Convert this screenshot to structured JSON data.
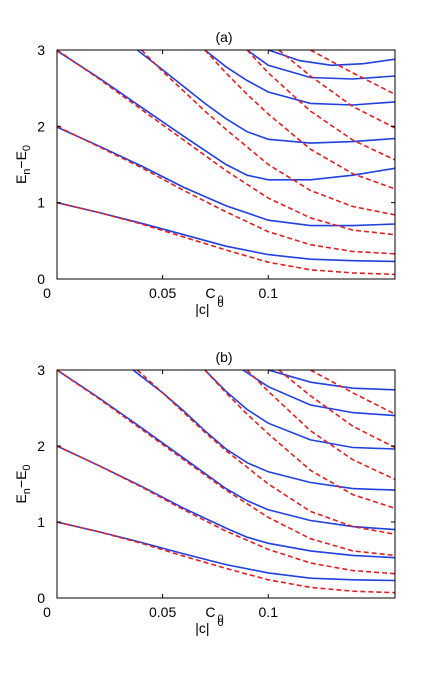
{
  "chart_data": [
    {
      "type": "line",
      "title": "(a)",
      "xlabel": "|c|",
      "ylabel_main": "E",
      "ylabel_sub_n": "n",
      "ylabel_minus": "−E",
      "ylabel_sub_0": "0",
      "x_ticks": [
        "0",
        "0.05",
        "0.1"
      ],
      "x_tick_values": [
        0,
        0.05,
        0.1
      ],
      "y_ticks": [
        "0",
        "1",
        "2",
        "3"
      ],
      "y_tick_values": [
        0,
        1,
        2,
        3
      ],
      "xlim": [
        0,
        0.16
      ],
      "ylim": [
        0,
        3
      ],
      "marker_label": "C",
      "marker_sub": "0",
      "marker_x": 0.075,
      "xlabel_sup": "0",
      "grid": false,
      "series": [
        {
          "style": "solid",
          "color": "#2040e0",
          "points": [
            [
              0,
              1
            ],
            [
              0.02,
              0.87
            ],
            [
              0.04,
              0.73
            ],
            [
              0.06,
              0.58
            ],
            [
              0.08,
              0.43
            ],
            [
              0.1,
              0.32
            ],
            [
              0.12,
              0.26
            ],
            [
              0.14,
              0.24
            ],
            [
              0.16,
              0.23
            ]
          ]
        },
        {
          "style": "solid",
          "color": "#2040e0",
          "points": [
            [
              0,
              1.99
            ],
            [
              0.02,
              1.74
            ],
            [
              0.04,
              1.48
            ],
            [
              0.06,
              1.2
            ],
            [
              0.08,
              0.96
            ],
            [
              0.1,
              0.77
            ],
            [
              0.12,
              0.7
            ],
            [
              0.14,
              0.7
            ],
            [
              0.16,
              0.72
            ]
          ]
        },
        {
          "style": "solid",
          "color": "#2040e0",
          "points": [
            [
              0,
              2.99
            ],
            [
              0.02,
              2.63
            ],
            [
              0.04,
              2.25
            ],
            [
              0.06,
              1.87
            ],
            [
              0.08,
              1.5
            ],
            [
              0.09,
              1.36
            ],
            [
              0.1,
              1.3
            ],
            [
              0.12,
              1.3
            ],
            [
              0.14,
              1.36
            ],
            [
              0.16,
              1.45
            ]
          ]
        },
        {
          "style": "solid",
          "color": "#2040e0",
          "points": [
            [
              0.038,
              3.0
            ],
            [
              0.05,
              2.74
            ],
            [
              0.06,
              2.52
            ],
            [
              0.07,
              2.3
            ],
            [
              0.08,
              2.1
            ],
            [
              0.09,
              1.93
            ],
            [
              0.1,
              1.83
            ],
            [
              0.12,
              1.78
            ],
            [
              0.14,
              1.8
            ],
            [
              0.16,
              1.84
            ]
          ]
        },
        {
          "style": "solid",
          "color": "#2040e0",
          "points": [
            [
              0.07,
              3.0
            ],
            [
              0.08,
              2.78
            ],
            [
              0.09,
              2.6
            ],
            [
              0.1,
              2.45
            ],
            [
              0.12,
              2.3
            ],
            [
              0.14,
              2.28
            ],
            [
              0.16,
              2.32
            ]
          ]
        },
        {
          "style": "solid",
          "color": "#2040e0",
          "points": [
            [
              0.09,
              3.0
            ],
            [
              0.1,
              2.8
            ],
            [
              0.12,
              2.64
            ],
            [
              0.14,
              2.62
            ],
            [
              0.16,
              2.66
            ]
          ]
        },
        {
          "style": "solid",
          "color": "#2040e0",
          "points": [
            [
              0.1,
              3.0
            ],
            [
              0.115,
              2.86
            ],
            [
              0.13,
              2.8
            ],
            [
              0.145,
              2.82
            ],
            [
              0.16,
              2.88
            ]
          ]
        },
        {
          "style": "dashed",
          "color": "#e02020",
          "points": [
            [
              0,
              1
            ],
            [
              0.02,
              0.87
            ],
            [
              0.04,
              0.72
            ],
            [
              0.06,
              0.55
            ],
            [
              0.08,
              0.38
            ],
            [
              0.1,
              0.22
            ],
            [
              0.12,
              0.12
            ],
            [
              0.14,
              0.08
            ],
            [
              0.16,
              0.06
            ]
          ]
        },
        {
          "style": "dashed",
          "color": "#e02020",
          "points": [
            [
              0,
              2.0
            ],
            [
              0.02,
              1.73
            ],
            [
              0.04,
              1.46
            ],
            [
              0.06,
              1.16
            ],
            [
              0.08,
              0.88
            ],
            [
              0.1,
              0.62
            ],
            [
              0.12,
              0.45
            ],
            [
              0.14,
              0.36
            ],
            [
              0.16,
              0.33
            ]
          ]
        },
        {
          "style": "dashed",
          "color": "#e02020",
          "points": [
            [
              0,
              3.0
            ],
            [
              0.02,
              2.62
            ],
            [
              0.04,
              2.22
            ],
            [
              0.06,
              1.82
            ],
            [
              0.08,
              1.42
            ],
            [
              0.1,
              1.06
            ],
            [
              0.12,
              0.8
            ],
            [
              0.14,
              0.64
            ],
            [
              0.16,
              0.58
            ]
          ]
        },
        {
          "style": "dashed",
          "color": "#e02020",
          "points": [
            [
              0.04,
              3.0
            ],
            [
              0.05,
              2.72
            ],
            [
              0.06,
              2.46
            ],
            [
              0.07,
              2.2
            ],
            [
              0.08,
              1.96
            ],
            [
              0.1,
              1.5
            ],
            [
              0.12,
              1.16
            ],
            [
              0.14,
              0.95
            ],
            [
              0.16,
              0.84
            ]
          ]
        },
        {
          "style": "dashed",
          "color": "#e02020",
          "points": [
            [
              0.07,
              3.0
            ],
            [
              0.08,
              2.7
            ],
            [
              0.09,
              2.42
            ],
            [
              0.1,
              2.16
            ],
            [
              0.12,
              1.7
            ],
            [
              0.14,
              1.38
            ],
            [
              0.16,
              1.18
            ]
          ]
        },
        {
          "style": "dashed",
          "color": "#e02020",
          "points": [
            [
              0.09,
              3.0
            ],
            [
              0.1,
              2.7
            ],
            [
              0.12,
              2.2
            ],
            [
              0.14,
              1.82
            ],
            [
              0.16,
              1.56
            ]
          ]
        },
        {
          "style": "dashed",
          "color": "#e02020",
          "points": [
            [
              0.105,
              3.0
            ],
            [
              0.12,
              2.66
            ],
            [
              0.14,
              2.26
            ],
            [
              0.16,
              1.98
            ]
          ]
        },
        {
          "style": "dashed",
          "color": "#e02020",
          "points": [
            [
              0.12,
              3.0
            ],
            [
              0.14,
              2.7
            ],
            [
              0.16,
              2.42
            ]
          ]
        }
      ]
    },
    {
      "type": "line",
      "title": "(b)",
      "xlabel": "|c|",
      "ylabel_main": "E",
      "ylabel_sub_n": "n",
      "ylabel_minus": "−E",
      "ylabel_sub_0": "0",
      "x_ticks": [
        "0",
        "0.05",
        "0.1"
      ],
      "x_tick_values": [
        0,
        0.05,
        0.1
      ],
      "y_ticks": [
        "0",
        "1",
        "2",
        "3"
      ],
      "y_tick_values": [
        0,
        1,
        2,
        3
      ],
      "xlim": [
        0,
        0.16
      ],
      "ylim": [
        0,
        3
      ],
      "marker_label": "C",
      "marker_sub": "0",
      "marker_x": 0.075,
      "xlabel_sup": "0",
      "grid": false,
      "series": [
        {
          "style": "solid",
          "color": "#2040e0",
          "points": [
            [
              0,
              1
            ],
            [
              0.02,
              0.87
            ],
            [
              0.04,
              0.73
            ],
            [
              0.06,
              0.58
            ],
            [
              0.08,
              0.44
            ],
            [
              0.1,
              0.33
            ],
            [
              0.12,
              0.26
            ],
            [
              0.14,
              0.24
            ],
            [
              0.16,
              0.23
            ]
          ]
        },
        {
          "style": "solid",
          "color": "#2040e0",
          "points": [
            [
              0,
              2.0
            ],
            [
              0.02,
              1.74
            ],
            [
              0.04,
              1.47
            ],
            [
              0.06,
              1.18
            ],
            [
              0.08,
              0.92
            ],
            [
              0.09,
              0.8
            ],
            [
              0.1,
              0.72
            ],
            [
              0.12,
              0.62
            ],
            [
              0.14,
              0.56
            ],
            [
              0.16,
              0.53
            ]
          ]
        },
        {
          "style": "solid",
          "color": "#2040e0",
          "points": [
            [
              0,
              3.0
            ],
            [
              0.02,
              2.63
            ],
            [
              0.04,
              2.24
            ],
            [
              0.06,
              1.84
            ],
            [
              0.08,
              1.44
            ],
            [
              0.09,
              1.28
            ],
            [
              0.1,
              1.16
            ],
            [
              0.12,
              1.02
            ],
            [
              0.14,
              0.94
            ],
            [
              0.16,
              0.9
            ]
          ]
        },
        {
          "style": "solid",
          "color": "#2040e0",
          "points": [
            [
              0.036,
              3.0
            ],
            [
              0.05,
              2.7
            ],
            [
              0.06,
              2.46
            ],
            [
              0.07,
              2.2
            ],
            [
              0.08,
              1.96
            ],
            [
              0.09,
              1.78
            ],
            [
              0.1,
              1.66
            ],
            [
              0.12,
              1.52
            ],
            [
              0.14,
              1.44
            ],
            [
              0.16,
              1.42
            ]
          ]
        },
        {
          "style": "solid",
          "color": "#2040e0",
          "points": [
            [
              0.07,
              3.0
            ],
            [
              0.08,
              2.72
            ],
            [
              0.09,
              2.48
            ],
            [
              0.1,
              2.3
            ],
            [
              0.12,
              2.08
            ],
            [
              0.14,
              1.98
            ],
            [
              0.16,
              1.96
            ]
          ]
        },
        {
          "style": "solid",
          "color": "#2040e0",
          "points": [
            [
              0.088,
              3.0
            ],
            [
              0.1,
              2.78
            ],
            [
              0.12,
              2.54
            ],
            [
              0.14,
              2.44
            ],
            [
              0.16,
              2.4
            ]
          ]
        },
        {
          "style": "solid",
          "color": "#2040e0",
          "points": [
            [
              0.1,
              3.0
            ],
            [
              0.12,
              2.84
            ],
            [
              0.14,
              2.76
            ],
            [
              0.16,
              2.74
            ]
          ]
        },
        {
          "style": "dashed",
          "color": "#e02020",
          "points": [
            [
              0,
              1
            ],
            [
              0.02,
              0.87
            ],
            [
              0.04,
              0.72
            ],
            [
              0.06,
              0.55
            ],
            [
              0.08,
              0.39
            ],
            [
              0.1,
              0.24
            ],
            [
              0.12,
              0.14
            ],
            [
              0.14,
              0.09
            ],
            [
              0.16,
              0.07
            ]
          ]
        },
        {
          "style": "dashed",
          "color": "#e02020",
          "points": [
            [
              0,
              2.0
            ],
            [
              0.02,
              1.74
            ],
            [
              0.04,
              1.46
            ],
            [
              0.06,
              1.16
            ],
            [
              0.08,
              0.88
            ],
            [
              0.1,
              0.64
            ],
            [
              0.12,
              0.46
            ],
            [
              0.14,
              0.36
            ],
            [
              0.16,
              0.32
            ]
          ]
        },
        {
          "style": "dashed",
          "color": "#e02020",
          "points": [
            [
              0,
              3.0
            ],
            [
              0.02,
              2.62
            ],
            [
              0.04,
              2.22
            ],
            [
              0.06,
              1.82
            ],
            [
              0.08,
              1.42
            ],
            [
              0.1,
              1.06
            ],
            [
              0.12,
              0.78
            ],
            [
              0.14,
              0.62
            ],
            [
              0.16,
              0.56
            ]
          ]
        },
        {
          "style": "dashed",
          "color": "#e02020",
          "points": [
            [
              0.038,
              3.0
            ],
            [
              0.05,
              2.7
            ],
            [
              0.06,
              2.44
            ],
            [
              0.07,
              2.18
            ],
            [
              0.08,
              1.94
            ],
            [
              0.1,
              1.5
            ],
            [
              0.12,
              1.14
            ],
            [
              0.14,
              0.94
            ],
            [
              0.16,
              0.84
            ]
          ]
        },
        {
          "style": "dashed",
          "color": "#e02020",
          "points": [
            [
              0.07,
              3.0
            ],
            [
              0.08,
              2.7
            ],
            [
              0.09,
              2.42
            ],
            [
              0.1,
              2.16
            ],
            [
              0.12,
              1.68
            ],
            [
              0.14,
              1.36
            ],
            [
              0.16,
              1.18
            ]
          ]
        },
        {
          "style": "dashed",
          "color": "#e02020",
          "points": [
            [
              0.09,
              3.0
            ],
            [
              0.1,
              2.72
            ],
            [
              0.12,
              2.2
            ],
            [
              0.14,
              1.82
            ],
            [
              0.16,
              1.56
            ]
          ]
        },
        {
          "style": "dashed",
          "color": "#e02020",
          "points": [
            [
              0.105,
              3.0
            ],
            [
              0.12,
              2.66
            ],
            [
              0.14,
              2.26
            ],
            [
              0.16,
              1.98
            ]
          ]
        },
        {
          "style": "dashed",
          "color": "#e02020",
          "points": [
            [
              0.12,
              3.0
            ],
            [
              0.14,
              2.7
            ],
            [
              0.16,
              2.42
            ]
          ]
        }
      ]
    }
  ]
}
